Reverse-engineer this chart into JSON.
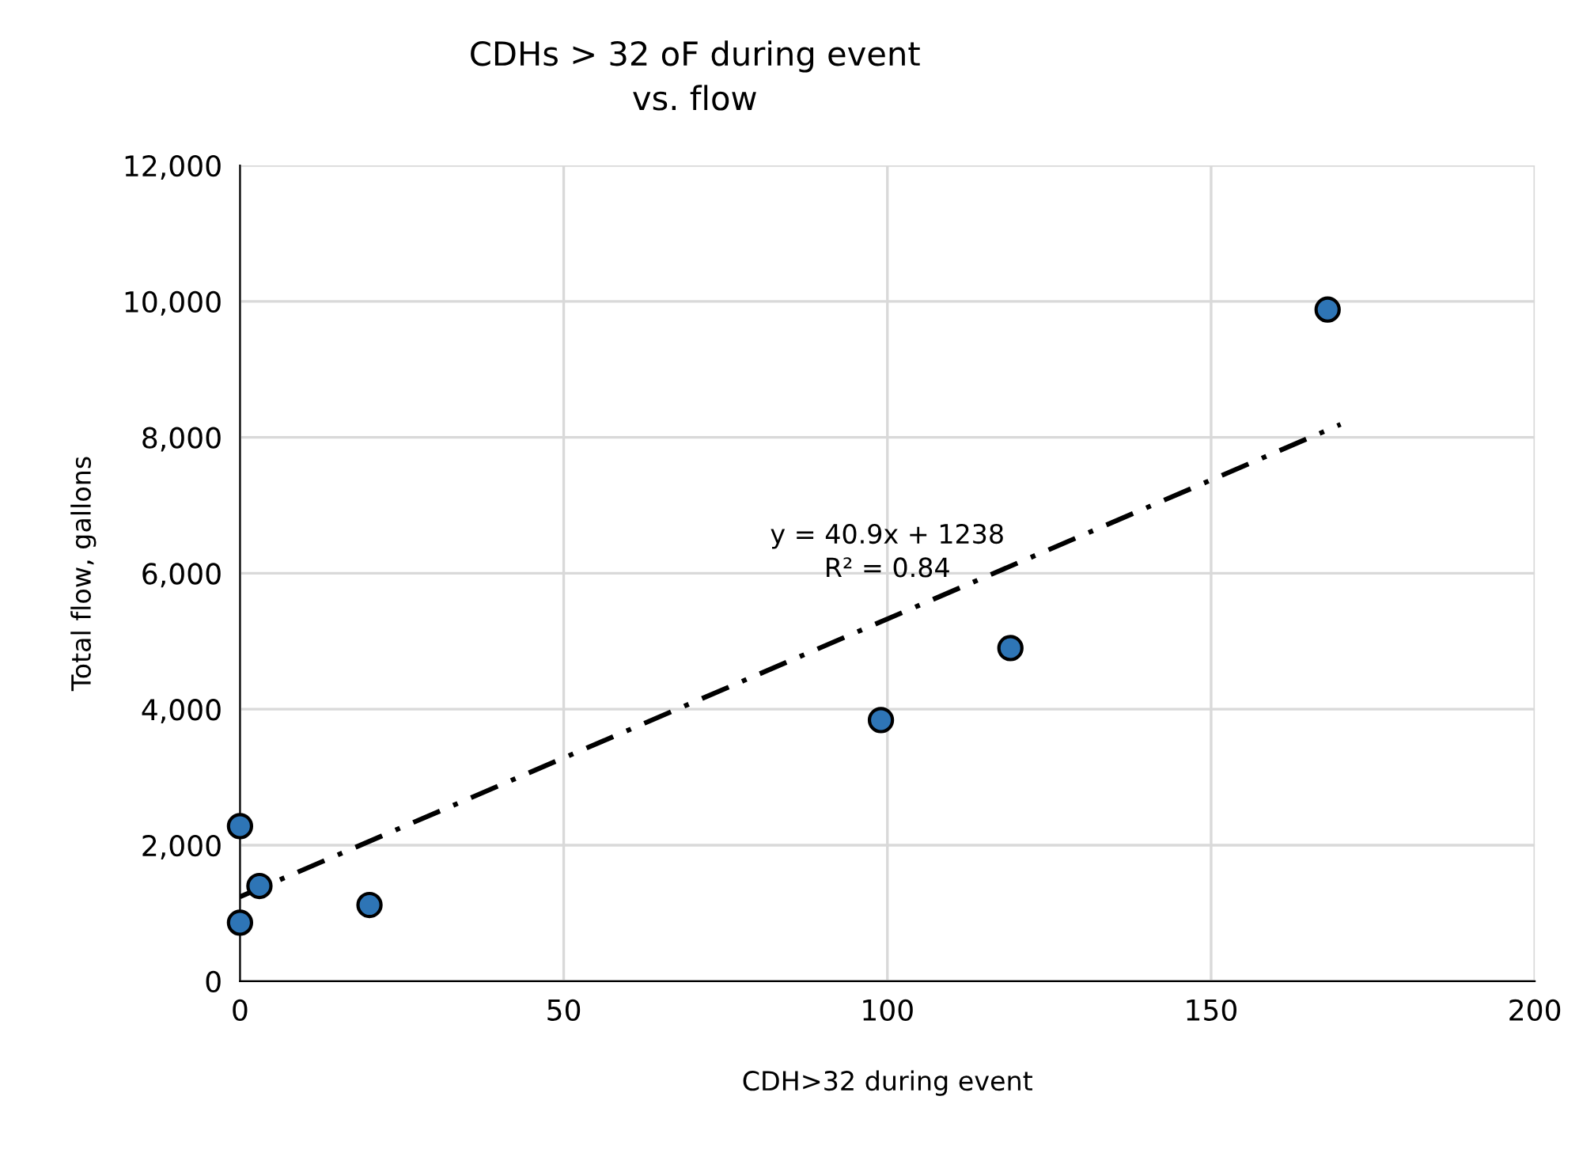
{
  "chart_data": {
    "type": "scatter",
    "title": "CDHs > 32 oF during event\nvs. flow",
    "xlabel": "CDH>32 during event",
    "ylabel": "Total flow, gallons",
    "series": [
      {
        "color": "#2e75b6",
        "x": [
          0,
          0,
          3,
          20,
          99,
          119,
          168
        ],
        "values": [
          2280,
          860,
          1400,
          1120,
          3840,
          4900,
          9880
        ],
        "marker": "circle"
      },
      {
        "type": "line",
        "color": "#000000",
        "x": [
          0,
          170
        ],
        "values": [
          1240,
          8190
        ],
        "line_style": "dashed"
      }
    ],
    "annotations": [
      "y = 40.9x + 1238\nR² = 0.84"
    ],
    "xlim": [
      0,
      200
    ],
    "xticks": [
      0,
      50,
      100,
      150,
      200
    ],
    "ylim": [
      0,
      12000
    ],
    "yticks": [
      {
        "value": 0,
        "label": "0"
      },
      {
        "value": 2000,
        "label": "2,000"
      },
      {
        "value": 4000,
        "label": "4,000"
      },
      {
        "value": 6000,
        "label": "6,000"
      },
      {
        "value": 8000,
        "label": "8,000"
      },
      {
        "value": 10000,
        "label": "10,000"
      },
      {
        "value": 12000,
        "label": "12,000"
      }
    ],
    "grid": true
  }
}
